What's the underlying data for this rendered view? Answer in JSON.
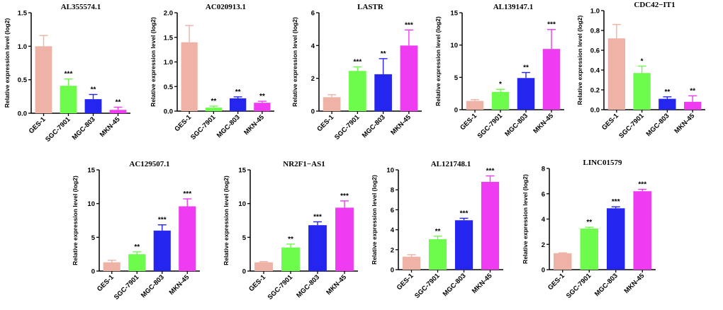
{
  "colors": [
    "#eeb2a6",
    "#6dfc4b",
    "#2525f0",
    "#ef3cf3"
  ],
  "chart_data": [
    {
      "type": "bar",
      "title": "AL355574.1",
      "ylabel": "Relative expression level (log2)",
      "categories": [
        "GES-1",
        "SGC-7901",
        "MGC-803",
        "MKN-45"
      ],
      "values": [
        1.0,
        0.41,
        0.21,
        0.05
      ],
      "errors": [
        0.16,
        0.1,
        0.07,
        0.04
      ],
      "significance": [
        "",
        "***",
        "**",
        "**"
      ],
      "ylim": [
        0,
        1.5
      ],
      "yticks": [
        0,
        0.5,
        1.0,
        1.5
      ],
      "ytick_labels": [
        "0.0",
        "0.5",
        "1.0",
        "1.5"
      ]
    },
    {
      "type": "bar",
      "title": "AC020913.1",
      "ylabel": "Relative expression level (log2)",
      "categories": [
        "GES-1",
        "SGC-7901",
        "MGC-803",
        "MKN-45"
      ],
      "values": [
        1.4,
        0.07,
        0.26,
        0.17
      ],
      "errors": [
        0.34,
        0.03,
        0.03,
        0.03
      ],
      "significance": [
        "",
        "**",
        "**",
        "**"
      ],
      "ylim": [
        0,
        2.0
      ],
      "yticks": [
        0,
        0.5,
        1.0,
        1.5,
        2.0
      ],
      "ytick_labels": [
        "0.0",
        "0.5",
        "1.0",
        "1.5",
        "2.0"
      ]
    },
    {
      "type": "bar",
      "title": "LASTR",
      "ylabel": "Relative expression level (log2)",
      "categories": [
        "GES-1",
        "SGC-7901",
        "MGC-803",
        "MKN-45"
      ],
      "values": [
        0.85,
        2.45,
        2.25,
        4.0
      ],
      "errors": [
        0.15,
        0.25,
        0.95,
        0.95
      ],
      "significance": [
        "",
        "***",
        "**",
        "***"
      ],
      "ylim": [
        0,
        6
      ],
      "yticks": [
        0,
        2,
        4,
        6
      ],
      "ytick_labels": [
        "0",
        "2",
        "4",
        "6"
      ]
    },
    {
      "type": "bar",
      "title": "AL139147.1",
      "ylabel": "Relative expression level (log2)",
      "categories": [
        "GES-1",
        "SGC-7901",
        "MGC-803",
        "MKN-45"
      ],
      "values": [
        1.35,
        2.75,
        4.9,
        9.4
      ],
      "errors": [
        0.2,
        0.4,
        0.85,
        3.0
      ],
      "significance": [
        "",
        "*",
        "**",
        "***"
      ],
      "ylim": [
        0,
        15
      ],
      "yticks": [
        0,
        5,
        10,
        15
      ],
      "ytick_labels": [
        "0",
        "5",
        "10",
        "15"
      ]
    },
    {
      "type": "bar",
      "title": "CDC42−IT1",
      "ylabel": "Relative expression level (log2)",
      "categories": [
        "GES-1",
        "SGC-7901",
        "MGC-803",
        "MKN-45"
      ],
      "values": [
        0.72,
        0.37,
        0.11,
        0.08
      ],
      "errors": [
        0.14,
        0.07,
        0.02,
        0.06
      ],
      "significance": [
        "",
        "*",
        "**",
        "**"
      ],
      "ylim": [
        0,
        1.0
      ],
      "yticks": [
        0,
        0.2,
        0.4,
        0.6,
        0.8,
        1.0
      ],
      "ytick_labels": [
        "0.0",
        "0.2",
        "0.4",
        "0.6",
        "0.8",
        "1.0"
      ]
    },
    {
      "type": "bar",
      "title": "AC129507.1",
      "ylabel": "Relative expression level (log2)",
      "categories": [
        "GES-1",
        "SGC-7901",
        "MGC-803",
        "MKN-45"
      ],
      "values": [
        1.3,
        2.5,
        6.0,
        9.6
      ],
      "errors": [
        0.3,
        0.35,
        0.85,
        1.1
      ],
      "significance": [
        "",
        "**",
        "***",
        "***"
      ],
      "ylim": [
        0,
        15
      ],
      "yticks": [
        0,
        5,
        10,
        15
      ],
      "ytick_labels": [
        "0",
        "5",
        "10",
        "15"
      ]
    },
    {
      "type": "bar",
      "title": "NR2F1−AS1",
      "ylabel": "Relative expression level (log2)",
      "categories": [
        "GES-1",
        "SGC-7901",
        "MGC-803",
        "MKN-45"
      ],
      "values": [
        1.3,
        3.5,
        6.8,
        9.4
      ],
      "errors": [
        0.1,
        0.5,
        0.5,
        1.0
      ],
      "significance": [
        "",
        "**",
        "***",
        "***"
      ],
      "ylim": [
        0,
        15
      ],
      "yticks": [
        0,
        5,
        10,
        15
      ],
      "ytick_labels": [
        "0",
        "5",
        "10",
        "15"
      ]
    },
    {
      "type": "bar",
      "title": "AL121748.1",
      "ylabel": "Relative expression level (log2)",
      "categories": [
        "GES-1",
        "SGC-7901",
        "MGC-803",
        "MKN-45"
      ],
      "values": [
        1.3,
        3.05,
        4.95,
        8.8
      ],
      "errors": [
        0.2,
        0.3,
        0.2,
        0.6
      ],
      "significance": [
        "",
        "**",
        "***",
        "***"
      ],
      "ylim": [
        0,
        10
      ],
      "yticks": [
        0,
        2,
        4,
        6,
        8,
        10
      ],
      "ytick_labels": [
        "0",
        "2",
        "4",
        "6",
        "8",
        "10"
      ]
    },
    {
      "type": "bar",
      "title": "LINC01579",
      "ylabel": "Relative expression level (log2)",
      "categories": [
        "GES-1",
        "SGC-7901",
        "MGC-803",
        "MKN-45"
      ],
      "values": [
        1.3,
        3.25,
        4.85,
        6.2
      ],
      "errors": [
        0.03,
        0.1,
        0.12,
        0.15
      ],
      "significance": [
        "",
        "**",
        "***",
        "***"
      ],
      "ylim": [
        0,
        8
      ],
      "yticks": [
        0,
        2,
        4,
        6,
        8
      ],
      "ytick_labels": [
        "0",
        "2",
        "4",
        "6",
        "8"
      ]
    }
  ]
}
